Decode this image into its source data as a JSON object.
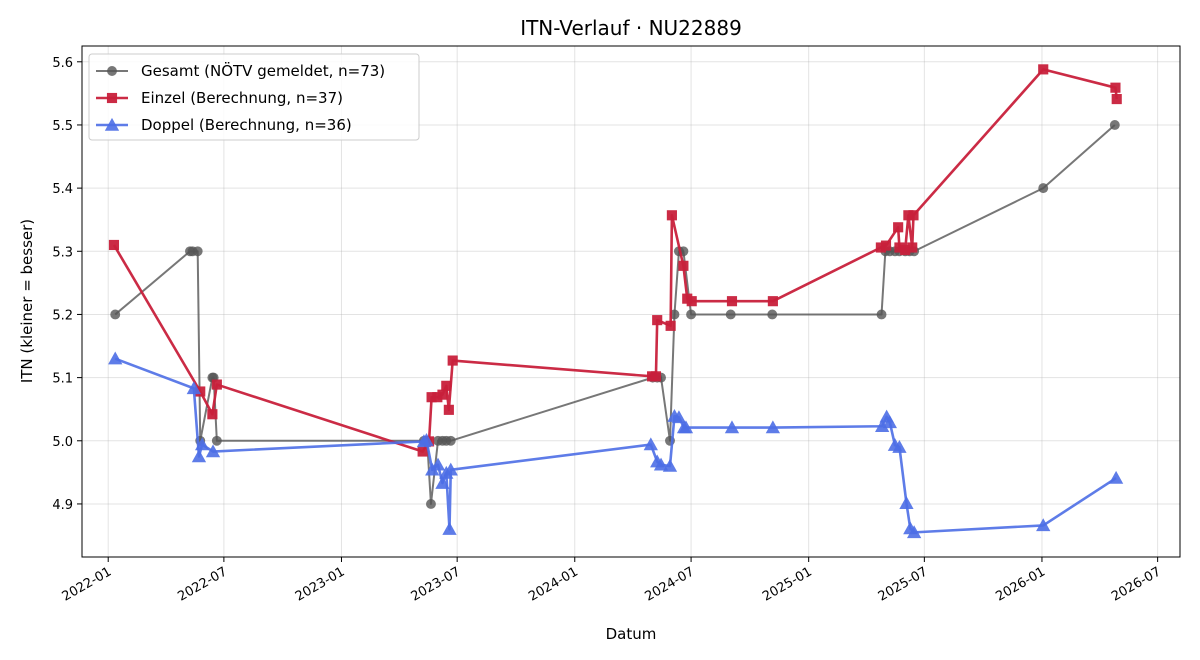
{
  "chart_data": {
    "type": "line",
    "title": "ITN-Verlauf · NU22889",
    "xlabel": "Datum",
    "ylabel": "ITN  (kleiner = besser)",
    "x_is_date": true,
    "xlim": [
      "2021-11-21",
      "2026-08-05"
    ],
    "ylim": [
      4.816,
      5.625
    ],
    "x_ticks": [
      "2022-01",
      "2022-07",
      "2023-01",
      "2023-07",
      "2024-01",
      "2024-07",
      "2025-01",
      "2025-07",
      "2026-01",
      "2026-07"
    ],
    "y_ticks": [
      4.9,
      5.0,
      5.1,
      5.2,
      5.3,
      5.4,
      5.5,
      5.6
    ],
    "grid": true,
    "legend_position": "top-left",
    "series": [
      {
        "name": "Gesamt (NÖTV gemeldet, n=73)",
        "color": "#555555",
        "marker": "circle",
        "x": [
          "2022-01-12",
          "2022-05-09",
          "2022-05-13",
          "2022-05-21",
          "2022-05-25",
          "2022-06-13",
          "2022-06-15",
          "2022-06-20",
          "2023-05-10",
          "2023-05-15",
          "2023-05-21",
          "2023-06-01",
          "2023-06-08",
          "2023-06-14",
          "2023-06-21",
          "2024-05-02",
          "2024-05-09",
          "2024-05-15",
          "2024-05-29",
          "2024-06-05",
          "2024-06-12",
          "2024-06-19",
          "2024-07-01",
          "2024-09-01",
          "2024-11-05",
          "2025-04-25",
          "2025-05-01",
          "2025-05-08",
          "2025-05-16",
          "2025-05-23",
          "2025-06-01",
          "2025-06-08",
          "2025-06-15",
          "2026-01-03",
          "2026-04-25"
        ],
        "y": [
          5.2,
          5.3,
          5.3,
          5.3,
          5.0,
          5.1,
          5.1,
          5.0,
          5.0,
          5.0,
          4.9,
          5.0,
          5.0,
          5.0,
          5.0,
          5.1,
          5.1,
          5.1,
          5.0,
          5.2,
          5.3,
          5.3,
          5.2,
          5.2,
          5.2,
          5.2,
          5.3,
          5.3,
          5.3,
          5.3,
          5.3,
          5.3,
          5.3,
          5.4,
          5.5
        ]
      },
      {
        "name": "Einzel (Berechnung, n=37)",
        "color": "#c8203b",
        "marker": "square",
        "x": [
          "2022-01-10",
          "2022-05-25",
          "2022-06-13",
          "2022-06-20",
          "2023-05-08",
          "2023-05-18",
          "2023-05-22",
          "2023-05-31",
          "2023-06-08",
          "2023-06-14",
          "2023-06-18",
          "2023-06-24",
          "2024-05-01",
          "2024-05-07",
          "2024-05-09",
          "2024-05-30",
          "2024-06-01",
          "2024-06-19",
          "2024-06-25",
          "2024-07-02",
          "2024-09-03",
          "2024-11-06",
          "2025-04-24",
          "2025-05-02",
          "2025-05-21",
          "2025-05-23",
          "2025-06-01",
          "2025-06-06",
          "2025-06-12",
          "2025-06-14",
          "2026-01-03",
          "2026-04-26",
          "2026-04-28"
        ],
        "y": [
          5.31,
          5.078,
          5.042,
          5.089,
          4.983,
          4.999,
          5.069,
          5.069,
          5.073,
          5.087,
          5.049,
          5.127,
          5.102,
          5.102,
          5.191,
          5.182,
          5.357,
          5.277,
          5.225,
          5.221,
          5.221,
          5.221,
          5.306,
          5.309,
          5.338,
          5.306,
          5.302,
          5.357,
          5.306,
          5.357,
          5.588,
          5.559,
          5.541
        ]
      },
      {
        "name": "Doppel (Berechnung, n=36)",
        "color": "#4c6ee6",
        "marker": "triangle",
        "x": [
          "2022-01-12",
          "2022-05-15",
          "2022-05-23",
          "2022-05-28",
          "2022-06-14",
          "2023-05-10",
          "2023-05-14",
          "2023-05-23",
          "2023-06-01",
          "2023-06-08",
          "2023-06-14",
          "2023-06-19",
          "2023-06-21",
          "2024-04-29",
          "2024-05-09",
          "2024-05-15",
          "2024-05-29",
          "2024-06-05",
          "2024-06-12",
          "2024-06-20",
          "2024-06-23",
          "2024-09-03",
          "2024-11-06",
          "2025-04-26",
          "2025-05-03",
          "2025-05-08",
          "2025-05-16",
          "2025-05-23",
          "2025-06-03",
          "2025-06-09",
          "2025-06-15",
          "2026-01-03",
          "2026-04-27"
        ],
        "y": [
          5.13,
          5.083,
          4.975,
          4.994,
          4.983,
          4.999,
          5.001,
          4.954,
          4.962,
          4.933,
          4.949,
          4.86,
          4.954,
          4.994,
          4.967,
          4.962,
          4.96,
          5.039,
          5.037,
          5.021,
          5.021,
          5.021,
          5.021,
          5.023,
          5.038,
          5.029,
          4.993,
          4.99,
          4.901,
          4.861,
          4.855,
          4.866,
          4.941
        ]
      }
    ]
  }
}
